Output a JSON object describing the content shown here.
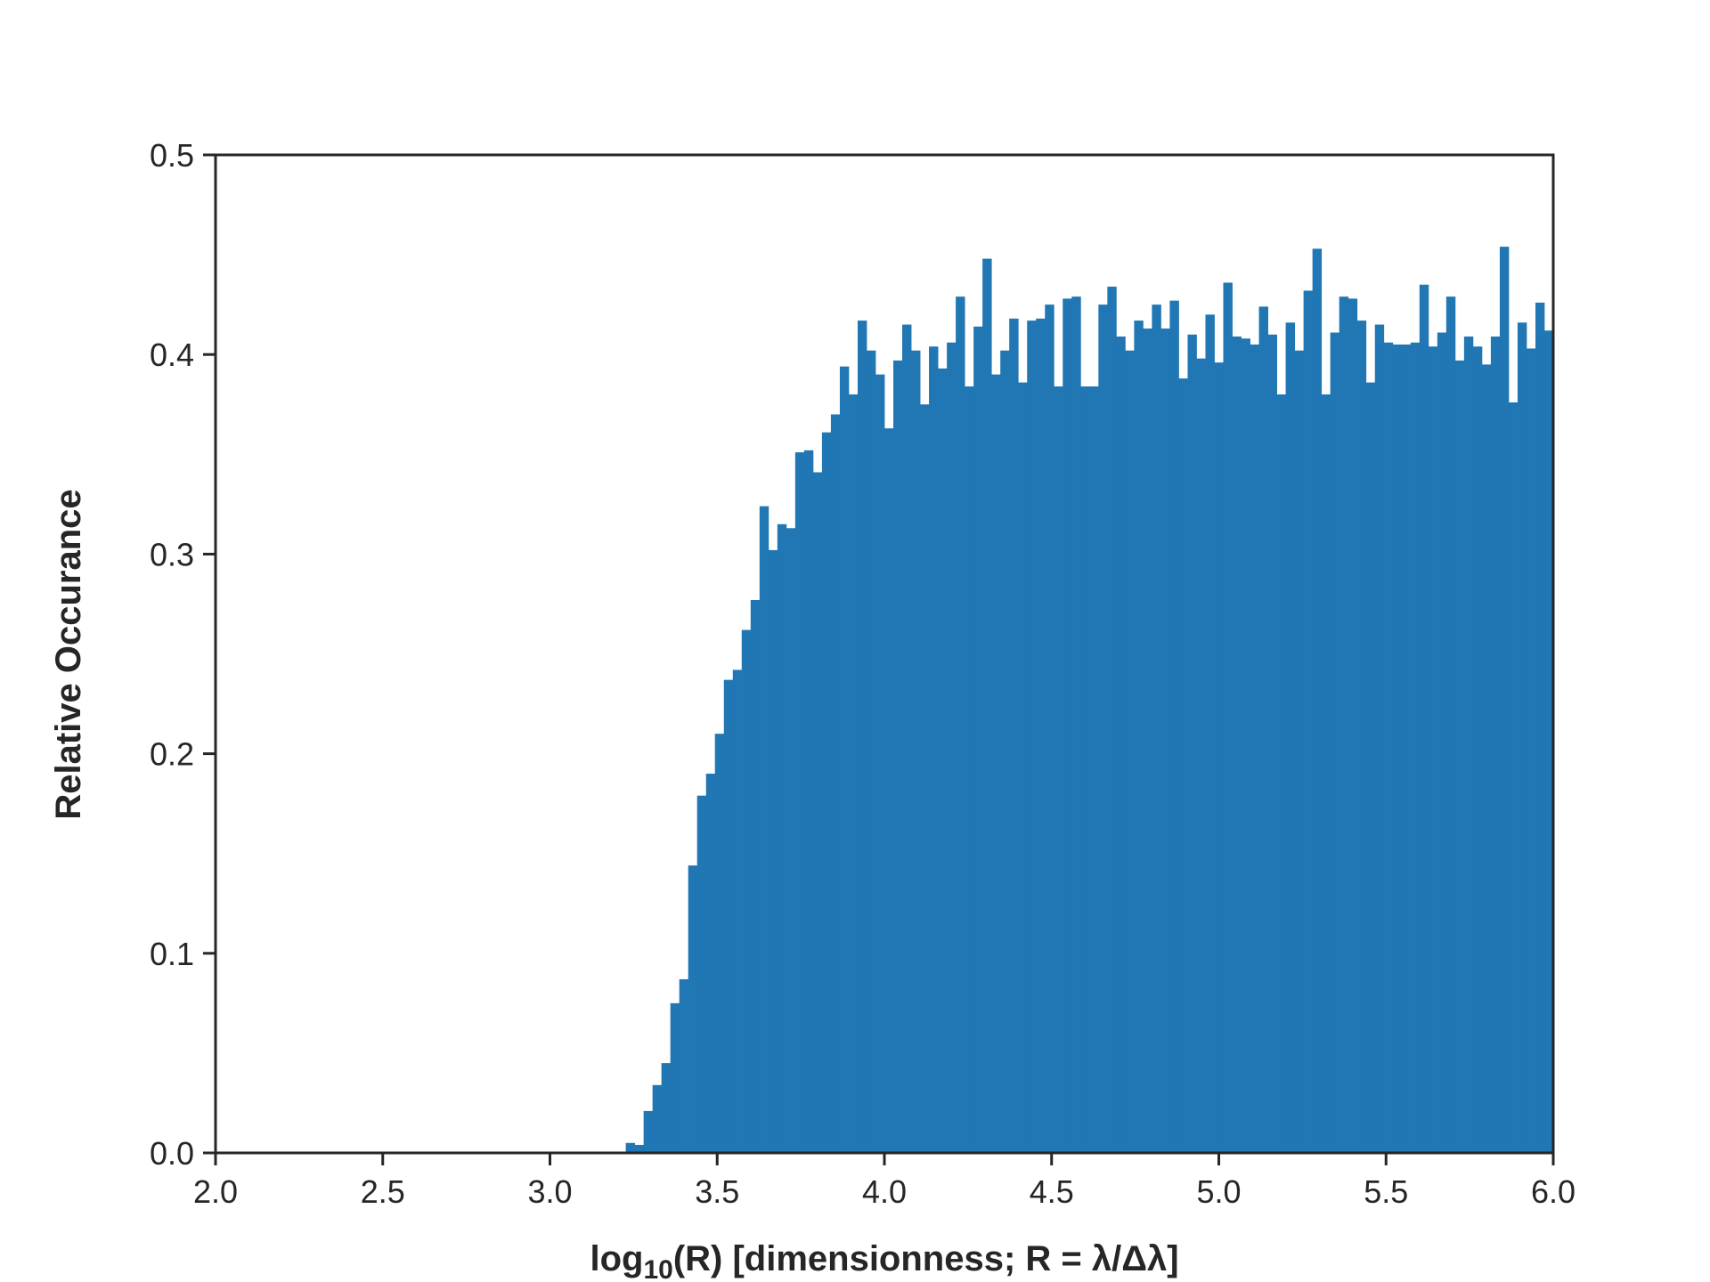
{
  "chart_data": {
    "type": "histogram",
    "xlabel": {
      "base": "log",
      "sub": "10",
      "rest": "(R) [dimensionness; R = λ/Δλ]"
    },
    "ylabel": "Relative Occurance",
    "color": "#2077b4",
    "bins": [
      2,
      2.0267,
      2.0533,
      2.08,
      2.1067,
      2.1333,
      2.16,
      2.1867,
      2.2133,
      2.24,
      2.2667,
      2.2933,
      2.32,
      2.3467,
      2.3733,
      2.4,
      2.4267,
      2.4533,
      2.48,
      2.5067,
      2.5333,
      2.56,
      2.5867,
      2.6133,
      2.64,
      2.6667,
      2.6933,
      2.72,
      2.7467,
      2.7733,
      2.8,
      2.8267,
      2.8533,
      2.88,
      2.9067,
      2.9333,
      2.96,
      2.9867,
      3.0133,
      3.04,
      3.0667,
      3.0933,
      3.12,
      3.1467,
      3.1733,
      3.2,
      3.2267,
      3.2533,
      3.28,
      3.3067,
      3.3333,
      3.36,
      3.3867,
      3.4133,
      3.44,
      3.4667,
      3.4933,
      3.52,
      3.5467,
      3.5733,
      3.6,
      3.6267,
      3.6533,
      3.68,
      3.7067,
      3.7333,
      3.76,
      3.7867,
      3.8133,
      3.84,
      3.8667,
      3.8933,
      3.92,
      3.9467,
      3.9733,
      4,
      4.0267,
      4.0533,
      4.08,
      4.1067,
      4.1333,
      4.16,
      4.1867,
      4.2133,
      4.24,
      4.2667,
      4.2933,
      4.32,
      4.3467,
      4.3733,
      4.4,
      4.4267,
      4.4533,
      4.48,
      4.5067,
      4.5333,
      4.56,
      4.5867,
      4.6133,
      4.64,
      4.6667,
      4.6933,
      4.72,
      4.7467,
      4.7733,
      4.8,
      4.8267,
      4.8533,
      4.88,
      4.9067,
      4.9333,
      4.96,
      4.9867,
      5.0133,
      5.04,
      5.0667,
      5.0933,
      5.12,
      5.1467,
      5.1733,
      5.2,
      5.2267,
      5.2533,
      5.28,
      5.3067,
      5.3333,
      5.36,
      5.3867,
      5.4133,
      5.44,
      5.4667,
      5.4933,
      5.52,
      5.5467,
      5.5733,
      5.6,
      5.6267,
      5.6533,
      5.68,
      5.7067,
      5.7333,
      5.76,
      5.7867,
      5.8133,
      5.84,
      5.8667,
      5.8933,
      5.92,
      5.9467,
      5.9733,
      6
    ],
    "values": [
      0,
      0,
      0,
      0,
      0,
      0,
      0,
      0,
      0,
      0,
      0,
      0,
      0,
      0,
      0,
      0,
      0,
      0,
      0,
      0,
      0,
      0,
      0,
      0,
      0,
      0,
      0,
      0,
      0,
      0,
      0,
      0,
      0,
      0,
      0,
      0,
      0,
      0,
      0,
      0,
      0,
      0,
      0,
      0,
      0,
      0,
      0.005,
      0.004,
      0.021,
      0.034,
      0.045,
      0.075,
      0.087,
      0.144,
      0.179,
      0.19,
      0.21,
      0.237,
      0.242,
      0.262,
      0.277,
      0.324,
      0.302,
      0.315,
      0.313,
      0.351,
      0.352,
      0.341,
      0.361,
      0.37,
      0.394,
      0.38,
      0.417,
      0.402,
      0.39,
      0.363,
      0.397,
      0.415,
      0.402,
      0.375,
      0.404,
      0.393,
      0.406,
      0.429,
      0.384,
      0.414,
      0.448,
      0.39,
      0.402,
      0.418,
      0.386,
      0.417,
      0.418,
      0.425,
      0.384,
      0.428,
      0.429,
      0.384,
      0.384,
      0.425,
      0.434,
      0.409,
      0.402,
      0.417,
      0.413,
      0.425,
      0.413,
      0.427,
      0.388,
      0.41,
      0.398,
      0.42,
      0.396,
      0.436,
      0.409,
      0.408,
      0.405,
      0.424,
      0.41,
      0.38,
      0.416,
      0.402,
      0.432,
      0.453,
      0.38,
      0.411,
      0.429,
      0.428,
      0.417,
      0.386,
      0.415,
      0.406,
      0.405,
      0.405,
      0.406,
      0.435,
      0.404,
      0.411,
      0.429,
      0.397,
      0.409,
      0.404,
      0.395,
      0.409,
      0.454,
      0.376,
      0.416,
      0.403,
      0.426,
      0.412
    ],
    "xlim": [
      2,
      6
    ],
    "ylim": [
      0,
      0.5
    ],
    "xticks": [
      {
        "value": 2,
        "label": "2.0"
      },
      2.5,
      {
        "value": 3,
        "label": "3.0"
      },
      3.5,
      {
        "value": 4,
        "label": "4.0"
      },
      4.5,
      {
        "value": 5,
        "label": "5.0"
      },
      5.5,
      {
        "value": 6,
        "label": "6.0"
      }
    ],
    "yticks": [
      {
        "value": 0,
        "label": "0.0"
      },
      0.1,
      0.2,
      0.3,
      0.4,
      0.5
    ]
  }
}
